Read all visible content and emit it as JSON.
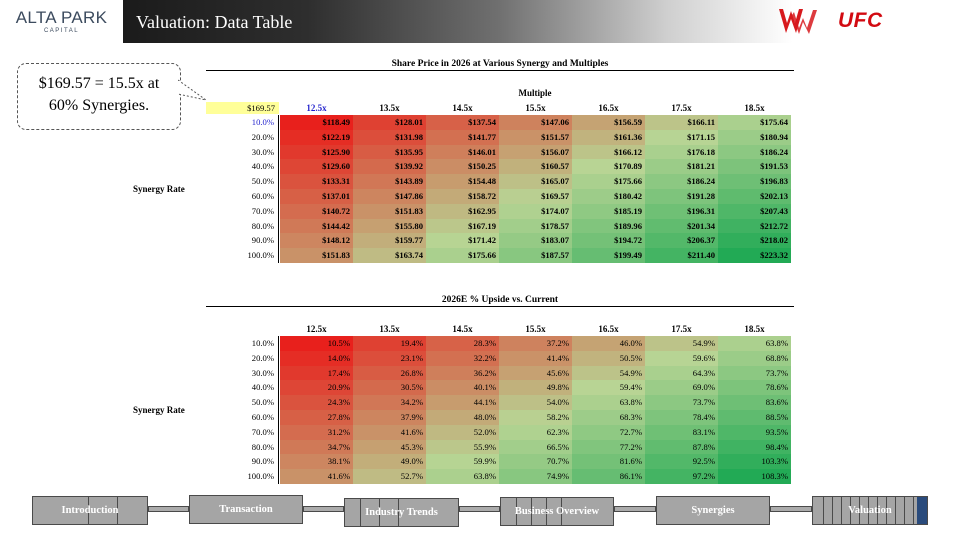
{
  "header": {
    "logo_main": "ALTA PARK",
    "logo_sub": "CAPITAL",
    "title": "Valuation: Data Table",
    "ufc": "UFC",
    "wwe_icon": "wwe-logo-icon",
    "colors": {
      "ufc_red": "#d20a11",
      "wwe_red": "#d7191d"
    }
  },
  "callout": {
    "line1": "$169.57 = 15.5x at",
    "line2": "60% Synergies."
  },
  "table1": {
    "title": "Share Price in 2026 at Various Synergy and Multiples",
    "col_group": "Multiple",
    "anchor": "$169.57",
    "row_header": "Synergy Rate",
    "columns": [
      "12.5x",
      "13.5x",
      "14.5x",
      "15.5x",
      "16.5x",
      "17.5x",
      "18.5x"
    ],
    "rows": [
      "10.0%",
      "20.0%",
      "30.0%",
      "40.0%",
      "50.0%",
      "60.0%",
      "70.0%",
      "80.0%",
      "90.0%",
      "100.0%"
    ],
    "values": [
      [
        "$118.49",
        "$128.01",
        "$137.54",
        "$147.06",
        "$156.59",
        "$166.11",
        "$175.64"
      ],
      [
        "$122.19",
        "$131.98",
        "$141.77",
        "$151.57",
        "$161.36",
        "$171.15",
        "$180.94"
      ],
      [
        "$125.90",
        "$135.95",
        "$146.01",
        "$156.07",
        "$166.12",
        "$176.18",
        "$186.24"
      ],
      [
        "$129.60",
        "$139.92",
        "$150.25",
        "$160.57",
        "$170.89",
        "$181.21",
        "$191.53"
      ],
      [
        "$133.31",
        "$143.89",
        "$154.48",
        "$165.07",
        "$175.66",
        "$186.24",
        "$196.83"
      ],
      [
        "$137.01",
        "$147.86",
        "$158.72",
        "$169.57",
        "$180.42",
        "$191.28",
        "$202.13"
      ],
      [
        "$140.72",
        "$151.83",
        "$162.95",
        "$174.07",
        "$185.19",
        "$196.31",
        "$207.43"
      ],
      [
        "$144.42",
        "$155.80",
        "$167.19",
        "$178.57",
        "$189.96",
        "$201.34",
        "$212.72"
      ],
      [
        "$148.12",
        "$159.77",
        "$171.42",
        "$183.07",
        "$194.72",
        "$206.37",
        "$218.02"
      ],
      [
        "$151.83",
        "$163.74",
        "$175.66",
        "$187.57",
        "$199.49",
        "$211.40",
        "$223.32"
      ]
    ]
  },
  "table2": {
    "title": "2026E % Upside vs. Current",
    "row_header": "Synergy Rate",
    "columns": [
      "12.5x",
      "13.5x",
      "14.5x",
      "15.5x",
      "16.5x",
      "17.5x",
      "18.5x"
    ],
    "rows": [
      "10.0%",
      "20.0%",
      "30.0%",
      "40.0%",
      "50.0%",
      "60.0%",
      "70.0%",
      "80.0%",
      "90.0%",
      "100.0%"
    ],
    "values": [
      [
        "10.5%",
        "19.4%",
        "28.3%",
        "37.2%",
        "46.0%",
        "54.9%",
        "63.8%"
      ],
      [
        "14.0%",
        "23.1%",
        "32.2%",
        "41.4%",
        "50.5%",
        "59.6%",
        "68.8%"
      ],
      [
        "17.4%",
        "26.8%",
        "36.2%",
        "45.6%",
        "54.9%",
        "64.3%",
        "73.7%"
      ],
      [
        "20.9%",
        "30.5%",
        "40.1%",
        "49.8%",
        "59.4%",
        "69.0%",
        "78.6%"
      ],
      [
        "24.3%",
        "34.2%",
        "44.1%",
        "54.0%",
        "63.8%",
        "73.7%",
        "83.6%"
      ],
      [
        "27.8%",
        "37.9%",
        "48.0%",
        "58.2%",
        "68.3%",
        "78.4%",
        "88.5%"
      ],
      [
        "31.2%",
        "41.6%",
        "52.0%",
        "62.3%",
        "72.7%",
        "83.1%",
        "93.5%"
      ],
      [
        "34.7%",
        "45.3%",
        "55.9%",
        "66.5%",
        "77.2%",
        "87.8%",
        "98.4%"
      ],
      [
        "38.1%",
        "49.0%",
        "59.9%",
        "70.7%",
        "81.6%",
        "92.5%",
        "103.3%"
      ],
      [
        "41.6%",
        "52.7%",
        "63.8%",
        "74.9%",
        "86.1%",
        "97.2%",
        "108.3%"
      ]
    ]
  },
  "heatmap_colors": {
    "low": "#e8201c",
    "mid": "#b8d494",
    "high": "#22aa55",
    "highlight": "#ffff99",
    "link_blue": "#1f1fcc"
  },
  "nav": {
    "items": [
      "Introduction",
      "Transaction",
      "Industry Trends",
      "Business Overview",
      "Synergies",
      "Valuation"
    ],
    "active": "Valuation",
    "active_color": "#2a4b7c"
  }
}
